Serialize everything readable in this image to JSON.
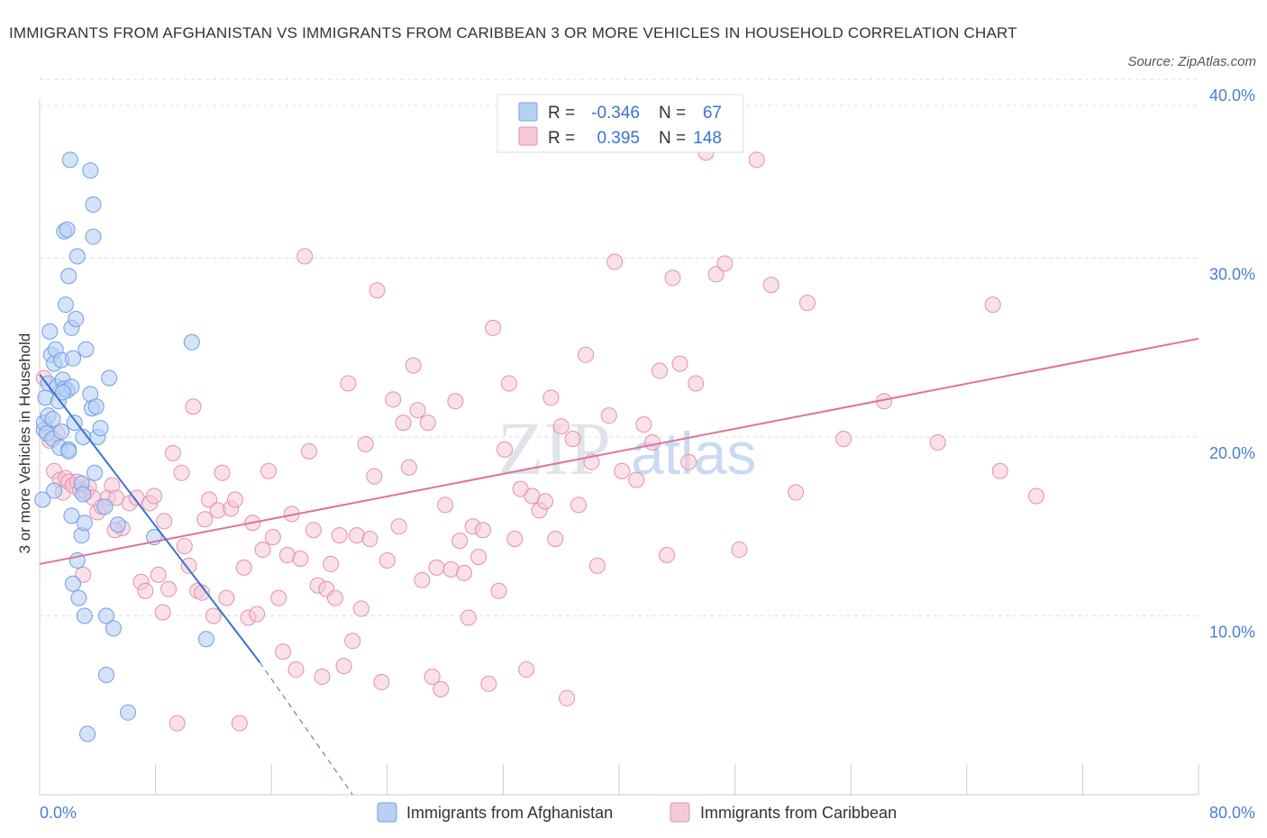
{
  "title": "IMMIGRANTS FROM AFGHANISTAN VS IMMIGRANTS FROM CARIBBEAN 3 OR MORE VEHICLES IN HOUSEHOLD CORRELATION CHART",
  "source": "Source: ZipAtlas.com",
  "watermark": {
    "zip": "ZIP",
    "atlas": "atlas"
  },
  "colors": {
    "blue": "#6f9fe6",
    "blue_fill": "#b8d0f4",
    "blue_line": "#3a73d0",
    "pink": "#e58fab",
    "pink_fill": "#f6c9d7",
    "pink_line": "#e0719a",
    "grid": "#dddddd",
    "axis_label": "#4a7fd4"
  },
  "legend": {
    "r_label": "R =",
    "n_label": "N =",
    "rows": [
      {
        "r": "-0.346",
        "n": "67"
      },
      {
        "r": "0.395",
        "n": "148"
      }
    ]
  },
  "bottom_legend": [
    "Immigrants from Afghanistan",
    "Immigrants from Caribbean"
  ],
  "chart_data": {
    "type": "scatter",
    "title": "IMMIGRANTS FROM AFGHANISTAN VS IMMIGRANTS FROM CARIBBEAN 3 OR MORE VEHICLES IN HOUSEHOLD CORRELATION CHART",
    "ylabel": "3 or more Vehicles in Household",
    "xlabel": "",
    "xlim": [
      0,
      80
    ],
    "ylim": [
      0,
      40
    ],
    "x_tick_labels": [
      "0.0%",
      "80.0%"
    ],
    "y_tick_labels": [
      "10.0%",
      "20.0%",
      "30.0%",
      "40.0%"
    ],
    "y_ticks": [
      10,
      20,
      30,
      40
    ],
    "grid": true,
    "legend_position": "top-center",
    "series": [
      {
        "name": "Immigrants from Afghanistan",
        "color": "#6f9fe6",
        "trend": {
          "x0": 0,
          "y0": 23.5,
          "x1": 15.2,
          "y1": 7.4,
          "dash_x_end": 21.6,
          "dash_y_end": 0
        },
        "points": [
          [
            0.2,
            16.5
          ],
          [
            0.3,
            20.4
          ],
          [
            0.3,
            20.8
          ],
          [
            0.4,
            22.2
          ],
          [
            0.5,
            20.2
          ],
          [
            0.6,
            23.0
          ],
          [
            0.6,
            21.2
          ],
          [
            0.7,
            25.9
          ],
          [
            0.8,
            24.6
          ],
          [
            0.9,
            19.9
          ],
          [
            1.0,
            24.1
          ],
          [
            1.0,
            17.0
          ],
          [
            1.1,
            24.9
          ],
          [
            1.2,
            22.8
          ],
          [
            1.3,
            22.0
          ],
          [
            1.4,
            19.4
          ],
          [
            1.5,
            24.3
          ],
          [
            1.5,
            20.3
          ],
          [
            1.6,
            23.2
          ],
          [
            1.7,
            22.7
          ],
          [
            1.7,
            31.5
          ],
          [
            1.8,
            27.4
          ],
          [
            1.9,
            31.6
          ],
          [
            1.9,
            22.6
          ],
          [
            2.0,
            29.0
          ],
          [
            2.0,
            19.3
          ],
          [
            2.1,
            35.5
          ],
          [
            2.2,
            22.8
          ],
          [
            2.2,
            26.1
          ],
          [
            2.3,
            24.4
          ],
          [
            2.4,
            20.8
          ],
          [
            2.2,
            15.6
          ],
          [
            2.3,
            11.8
          ],
          [
            2.5,
            26.6
          ],
          [
            2.6,
            13.1
          ],
          [
            2.6,
            30.1
          ],
          [
            2.7,
            11.0
          ],
          [
            2.9,
            17.4
          ],
          [
            2.9,
            14.5
          ],
          [
            3.0,
            20.0
          ],
          [
            3.0,
            16.8
          ],
          [
            3.1,
            10.0
          ],
          [
            3.1,
            15.2
          ],
          [
            3.2,
            24.9
          ],
          [
            3.3,
            3.4
          ],
          [
            3.5,
            22.4
          ],
          [
            3.5,
            34.9
          ],
          [
            3.6,
            21.6
          ],
          [
            3.7,
            33.0
          ],
          [
            3.7,
            31.2
          ],
          [
            3.8,
            18.0
          ],
          [
            3.9,
            21.7
          ],
          [
            4.0,
            20.0
          ],
          [
            4.2,
            20.5
          ],
          [
            4.5,
            16.1
          ],
          [
            4.6,
            10.0
          ],
          [
            4.6,
            6.7
          ],
          [
            4.8,
            23.3
          ],
          [
            5.1,
            9.3
          ],
          [
            5.4,
            15.1
          ],
          [
            6.1,
            4.6
          ],
          [
            7.9,
            14.4
          ],
          [
            10.5,
            25.3
          ],
          [
            11.5,
            8.7
          ],
          [
            2.0,
            19.2
          ],
          [
            1.6,
            22.5
          ],
          [
            0.9,
            21.0
          ]
        ]
      },
      {
        "name": "Immigrants from Caribbean",
        "color": "#e58fab",
        "trend": {
          "x0": 0,
          "y0": 12.9,
          "x1": 80,
          "y1": 25.5
        },
        "points": [
          [
            0.3,
            23.3
          ],
          [
            0.5,
            20.3
          ],
          [
            0.7,
            19.8
          ],
          [
            1.0,
            18.1
          ],
          [
            1.2,
            20.2
          ],
          [
            1.4,
            17.6
          ],
          [
            1.6,
            16.9
          ],
          [
            1.8,
            17.7
          ],
          [
            2.0,
            17.5
          ],
          [
            2.3,
            17.3
          ],
          [
            2.6,
            17.5
          ],
          [
            2.8,
            17.0
          ],
          [
            3.0,
            12.3
          ],
          [
            3.2,
            16.9
          ],
          [
            3.4,
            17.2
          ],
          [
            3.7,
            16.6
          ],
          [
            4.0,
            15.8
          ],
          [
            4.3,
            16.1
          ],
          [
            4.7,
            16.6
          ],
          [
            5.0,
            17.3
          ],
          [
            5.3,
            16.6
          ],
          [
            5.7,
            14.9
          ],
          [
            6.2,
            16.3
          ],
          [
            6.7,
            16.6
          ],
          [
            7.0,
            11.9
          ],
          [
            7.3,
            11.4
          ],
          [
            7.6,
            16.3
          ],
          [
            7.9,
            16.7
          ],
          [
            8.2,
            12.3
          ],
          [
            8.5,
            10.2
          ],
          [
            8.6,
            15.3
          ],
          [
            8.9,
            11.5
          ],
          [
            9.2,
            19.1
          ],
          [
            9.5,
            4.0
          ],
          [
            9.8,
            18.0
          ],
          [
            10.0,
            13.9
          ],
          [
            10.3,
            12.8
          ],
          [
            10.6,
            21.7
          ],
          [
            10.9,
            11.4
          ],
          [
            11.2,
            11.3
          ],
          [
            11.4,
            15.4
          ],
          [
            11.7,
            16.5
          ],
          [
            12.0,
            10.0
          ],
          [
            12.3,
            15.9
          ],
          [
            12.6,
            18.0
          ],
          [
            12.9,
            11.0
          ],
          [
            13.2,
            16.0
          ],
          [
            13.5,
            16.5
          ],
          [
            13.8,
            4.0
          ],
          [
            14.1,
            12.7
          ],
          [
            14.4,
            9.9
          ],
          [
            14.7,
            15.2
          ],
          [
            15.0,
            10.1
          ],
          [
            15.4,
            13.7
          ],
          [
            15.8,
            18.1
          ],
          [
            16.1,
            14.4
          ],
          [
            16.5,
            11.0
          ],
          [
            16.8,
            8.0
          ],
          [
            17.1,
            13.4
          ],
          [
            17.4,
            15.7
          ],
          [
            17.7,
            7.0
          ],
          [
            18.0,
            13.2
          ],
          [
            18.3,
            30.1
          ],
          [
            18.6,
            19.2
          ],
          [
            18.9,
            14.8
          ],
          [
            19.2,
            11.7
          ],
          [
            19.5,
            6.6
          ],
          [
            19.8,
            11.5
          ],
          [
            20.1,
            12.9
          ],
          [
            20.4,
            11.0
          ],
          [
            20.7,
            14.5
          ],
          [
            21.0,
            7.2
          ],
          [
            21.3,
            23.0
          ],
          [
            21.6,
            8.6
          ],
          [
            21.9,
            14.5
          ],
          [
            22.2,
            10.4
          ],
          [
            22.5,
            19.6
          ],
          [
            22.8,
            14.3
          ],
          [
            23.1,
            17.8
          ],
          [
            23.3,
            28.2
          ],
          [
            23.6,
            6.3
          ],
          [
            24.0,
            13.1
          ],
          [
            24.4,
            22.1
          ],
          [
            24.8,
            15.0
          ],
          [
            25.1,
            20.8
          ],
          [
            25.5,
            18.3
          ],
          [
            25.8,
            24.0
          ],
          [
            26.1,
            21.5
          ],
          [
            26.4,
            12.0
          ],
          [
            26.8,
            20.8
          ],
          [
            27.1,
            6.6
          ],
          [
            27.4,
            12.7
          ],
          [
            27.7,
            5.9
          ],
          [
            28.0,
            16.2
          ],
          [
            28.4,
            12.6
          ],
          [
            28.7,
            22.0
          ],
          [
            29.0,
            14.2
          ],
          [
            29.3,
            12.4
          ],
          [
            29.6,
            9.9
          ],
          [
            29.9,
            15.0
          ],
          [
            30.3,
            13.3
          ],
          [
            30.6,
            14.8
          ],
          [
            31.0,
            6.2
          ],
          [
            31.3,
            26.1
          ],
          [
            31.7,
            11.4
          ],
          [
            32.1,
            19.3
          ],
          [
            32.4,
            23.0
          ],
          [
            32.8,
            14.3
          ],
          [
            33.2,
            17.1
          ],
          [
            33.6,
            7.0
          ],
          [
            34.0,
            16.7
          ],
          [
            34.5,
            15.9
          ],
          [
            34.9,
            16.4
          ],
          [
            35.3,
            22.2
          ],
          [
            35.6,
            14.3
          ],
          [
            36.0,
            20.6
          ],
          [
            36.4,
            5.4
          ],
          [
            36.8,
            19.9
          ],
          [
            37.2,
            16.2
          ],
          [
            37.7,
            24.6
          ],
          [
            38.1,
            18.6
          ],
          [
            38.5,
            12.8
          ],
          [
            38.9,
            37.1
          ],
          [
            39.3,
            21.2
          ],
          [
            39.7,
            29.8
          ],
          [
            40.2,
            18.1
          ],
          [
            40.7,
            38.0
          ],
          [
            41.2,
            17.6
          ],
          [
            41.7,
            20.7
          ],
          [
            42.3,
            19.7
          ],
          [
            42.8,
            23.7
          ],
          [
            43.3,
            13.4
          ],
          [
            43.7,
            28.9
          ],
          [
            44.2,
            24.1
          ],
          [
            44.8,
            18.6
          ],
          [
            45.3,
            23.0
          ],
          [
            46.0,
            35.9
          ],
          [
            46.7,
            29.1
          ],
          [
            47.3,
            29.7
          ],
          [
            48.3,
            13.7
          ],
          [
            49.5,
            35.5
          ],
          [
            50.5,
            28.5
          ],
          [
            52.2,
            16.9
          ],
          [
            53.0,
            27.5
          ],
          [
            55.5,
            19.9
          ],
          [
            58.3,
            22.0
          ],
          [
            62.0,
            19.7
          ],
          [
            65.8,
            27.4
          ],
          [
            66.3,
            18.1
          ],
          [
            68.8,
            16.7
          ],
          [
            5.2,
            14.8
          ]
        ]
      }
    ]
  }
}
